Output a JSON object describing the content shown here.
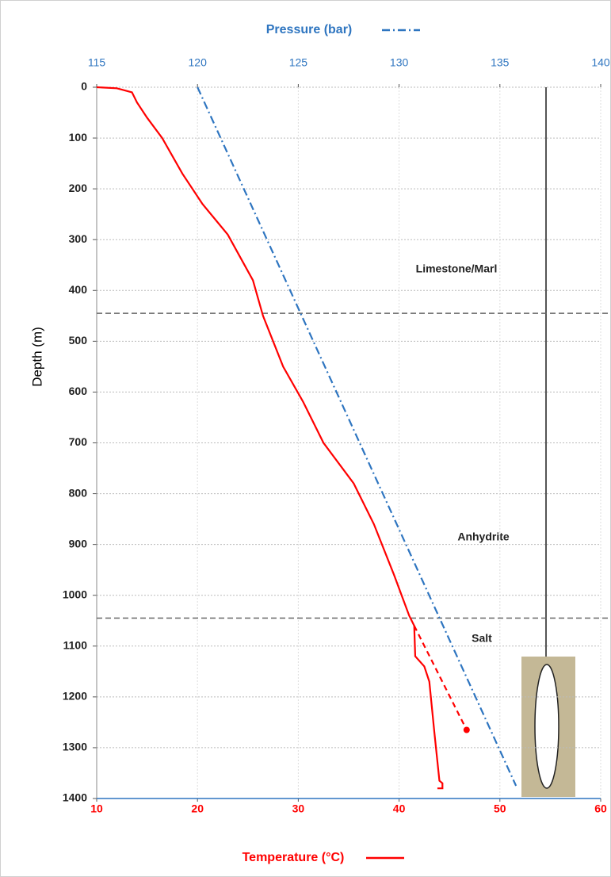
{
  "chart_data": {
    "type": "line",
    "y_label": "Depth (m)",
    "ylim": [
      0,
      1400
    ],
    "y_inverted": true,
    "yticks": [
      0,
      100,
      200,
      300,
      400,
      500,
      600,
      700,
      800,
      900,
      1000,
      1100,
      1200,
      1300,
      1400
    ],
    "xlim": [
      10,
      60
    ],
    "xticks": [
      10,
      20,
      30,
      40,
      50,
      60
    ],
    "x2lim": [
      115,
      140
    ],
    "x2ticks": [
      115,
      120,
      125,
      130,
      135,
      140
    ],
    "grid": true,
    "series": [
      {
        "name": "Temperature (°C)",
        "color": "#ff0000",
        "style": "solid",
        "x": [
          10,
          12,
          13.5,
          14,
          15,
          16.5,
          18.5,
          20.5,
          23,
          25.5,
          26.5,
          28.5,
          30.5,
          32.5,
          35.5,
          37.5,
          39.5,
          41,
          41.5,
          41.6,
          42.5,
          43,
          43.5,
          44,
          44.3,
          44.3,
          43.8
        ],
        "y": [
          0,
          2,
          10,
          30,
          60,
          100,
          170,
          230,
          290,
          380,
          450,
          550,
          620,
          700,
          780,
          860,
          960,
          1040,
          1060,
          1120,
          1140,
          1170,
          1270,
          1365,
          1370,
          1380,
          1380
        ]
      },
      {
        "color": "#ff0000",
        "style": "dashed",
        "marker": true,
        "x": [
          41.5,
          46.7
        ],
        "y": [
          1060,
          1265
        ]
      },
      {
        "name": "Pressure (bar)",
        "color": "#2e75c0",
        "style": "dashdot",
        "axis": "x2",
        "x": [
          120,
          135.8
        ],
        "y": [
          0,
          1375
        ]
      }
    ],
    "boundaries": [
      445,
      1045
    ],
    "annotations": [
      "Limestone/Marl",
      "Anhydrite",
      "Salt"
    ]
  }
}
